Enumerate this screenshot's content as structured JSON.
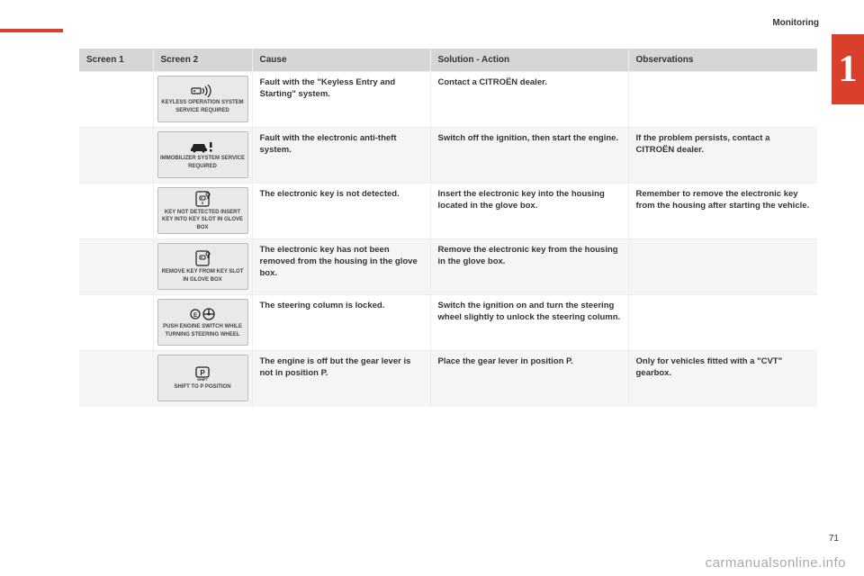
{
  "header": {
    "section": "Monitoring",
    "chapter": "1",
    "page": "71",
    "watermark": "carmanualsonline.info"
  },
  "table": {
    "columns": [
      "Screen 1",
      "Screen 2",
      "Cause",
      "Solution - Action",
      "Observations"
    ],
    "rows": [
      {
        "screen2_icon": "key-signal",
        "screen2_text": "KEYLESS OPERATION SYSTEM SERVICE REQUIRED",
        "cause": "Fault with the \"Keyless Entry and Starting\" system.",
        "solution": "Contact a CITROËN dealer.",
        "obs": ""
      },
      {
        "screen2_icon": "car-alert",
        "screen2_text": "IMMOBILIZER SYSTEM SERVICE REQUIRED",
        "cause": "Fault with the electronic anti-theft system.",
        "solution": "Switch off the ignition, then start the engine.",
        "obs": "If the problem persists, contact a CITROËN dealer."
      },
      {
        "screen2_icon": "key-slot",
        "screen2_text": "KEY NOT DETECTED INSERT KEY INTO KEY SLOT IN GLOVE BOX",
        "cause": "The electronic key is not detected.",
        "solution": "Insert the electronic key into the housing located in the glove box.",
        "obs": "Remember to remove the electronic key from the housing after starting the vehicle."
      },
      {
        "screen2_icon": "key-remove",
        "screen2_text": "REMOVE KEY FROM KEY SLOT IN GLOVE BOX",
        "cause": "The electronic key has not been removed from the housing in the glove box.",
        "solution": "Remove the electronic key from the housing in the glove box.",
        "obs": ""
      },
      {
        "screen2_icon": "engine-wheel",
        "screen2_text": "PUSH ENGINE SWITCH WHILE TURNING STEERING WHEEL",
        "cause": "The steering column is locked.",
        "solution": "Switch the ignition on and turn the steering wheel slightly to unlock the steering column.",
        "obs": ""
      },
      {
        "screen2_icon": "shift-p",
        "screen2_text": "SHIFT TO P POSITION",
        "cause": "The engine is off but the gear lever is not in position P.",
        "solution": "Place the gear lever in position P.",
        "obs": "Only for vehicles fitted with a \"CVT\" gearbox."
      }
    ]
  }
}
